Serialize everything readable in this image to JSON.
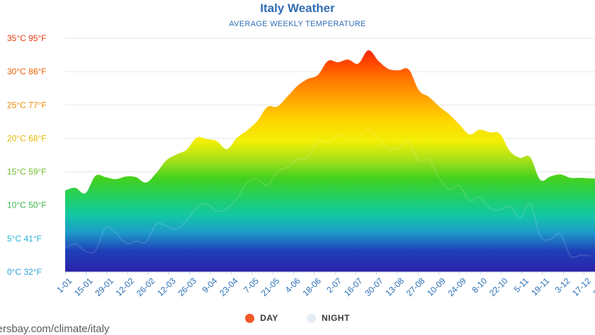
{
  "chart_data": {
    "type": "area",
    "title": "Italy Weather",
    "subtitle": "AVERAGE WEEKLY TEMPERATURE",
    "y_unit": "°C",
    "ylim": [
      0,
      35
    ],
    "y_ticks": [
      {
        "value": 0,
        "label": "0°C 32°F",
        "color": "#2a9fd6"
      },
      {
        "value": 5,
        "label": "5°C 41°F",
        "color": "#2ab5d6"
      },
      {
        "value": 10,
        "label": "10°C 50°F",
        "color": "#3cb54a"
      },
      {
        "value": 15,
        "label": "15°C 59°F",
        "color": "#72bf2a"
      },
      {
        "value": 20,
        "label": "20°C 68°F",
        "color": "#e0b800"
      },
      {
        "value": 25,
        "label": "25°C 77°F",
        "color": "#f08a00"
      },
      {
        "value": 30,
        "label": "30°C 86°F",
        "color": "#f06000"
      },
      {
        "value": 35,
        "label": "35°C 95°F",
        "color": "#e83a10"
      }
    ],
    "x_tick_labels": [
      "1-01",
      "15-01",
      "29-01",
      "12-02",
      "26-02",
      "12-03",
      "26-03",
      "9-04",
      "23-04",
      "7-05",
      "21-05",
      "4-06",
      "18-06",
      "2-07",
      "16-07",
      "30-07",
      "13-08",
      "27-08",
      "10-09",
      "24-09",
      "8-10",
      "22-10",
      "5-11",
      "19-11",
      "3-12",
      "17-12",
      "31-12"
    ],
    "grid": true,
    "legend_position": "bottom",
    "series": [
      {
        "name": "DAY",
        "color": "#f15a24",
        "values": [
          12.2,
          12.6,
          11.8,
          14.4,
          14.2,
          13.9,
          14.3,
          14.2,
          13.4,
          14.8,
          16.7,
          17.6,
          18.3,
          20.1,
          19.9,
          19.6,
          18.4,
          20.1,
          21.2,
          22.6,
          24.7,
          24.8,
          26.3,
          27.9,
          28.9,
          29.5,
          31.6,
          31.4,
          31.8,
          31.2,
          33.2,
          31.6,
          30.4,
          30.2,
          30.3,
          27.2,
          26.2,
          24.8,
          23.6,
          22.1,
          20.6,
          21.3,
          20.9,
          20.7,
          18.1,
          17.1,
          17.2,
          13.8,
          14.3,
          14.6,
          14.1,
          14.1,
          14.0
        ]
      },
      {
        "name": "NIGHT",
        "color": "#e4ecf5",
        "values": [
          3.5,
          4.2,
          3.1,
          3.2,
          6.6,
          5.9,
          4.3,
          4.6,
          4.5,
          7.1,
          6.9,
          6.4,
          7.7,
          9.6,
          10.2,
          9.1,
          9.5,
          11.0,
          13.4,
          13.9,
          13.0,
          15.1,
          15.7,
          16.9,
          17.1,
          19.6,
          19.4,
          20.5,
          19.9,
          20.0,
          21.3,
          19.9,
          18.4,
          18.6,
          19.5,
          16.6,
          16.8,
          14.1,
          12.4,
          12.9,
          10.7,
          11.2,
          9.6,
          9.3,
          9.8,
          8.1,
          10.2,
          5.4,
          4.9,
          5.7,
          2.4,
          2.5,
          2.4
        ]
      }
    ]
  },
  "legend": {
    "day_label": "DAY",
    "night_label": "NIGHT",
    "day_color": "#f15a24",
    "night_color": "#e4ecf5"
  },
  "footer": {
    "source_url": "kersbay.com/climate/italy"
  }
}
